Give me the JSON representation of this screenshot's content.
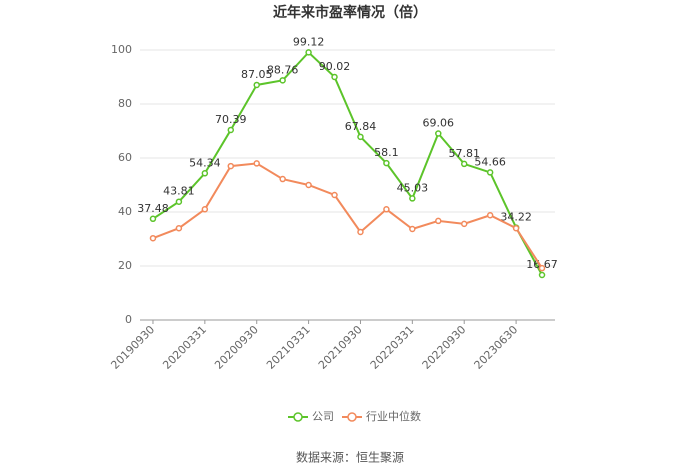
{
  "chart_data": {
    "type": "line",
    "title": "近年来市盈率情况（倍）",
    "categories": [
      "20190930",
      null,
      "20200331",
      null,
      "20200930",
      null,
      "20210331",
      null,
      "20210930",
      null,
      "20220331",
      null,
      "20220930",
      null,
      "20230630",
      null
    ],
    "series": [
      {
        "name": "公司",
        "color": "#5cc42a",
        "values": [
          37.48,
          43.81,
          54.34,
          70.39,
          87.05,
          88.76,
          99.12,
          90.02,
          67.84,
          58.1,
          45.03,
          69.06,
          57.81,
          54.66,
          34.22,
          16.67
        ],
        "show_labels": true
      },
      {
        "name": "行业中位数",
        "color": "#f28a5c",
        "values": [
          30.3,
          34,
          41,
          57,
          58,
          52.2,
          50,
          46.3,
          32.6,
          41,
          33.7,
          36.7,
          35.6,
          38.8,
          34,
          19.2
        ],
        "show_labels": false
      }
    ],
    "ylim": [
      0,
      100
    ],
    "yticks": [
      0,
      20,
      40,
      60,
      80,
      100
    ],
    "grid": true,
    "legend": "bottom",
    "source": "数据来源：恒生聚源"
  }
}
